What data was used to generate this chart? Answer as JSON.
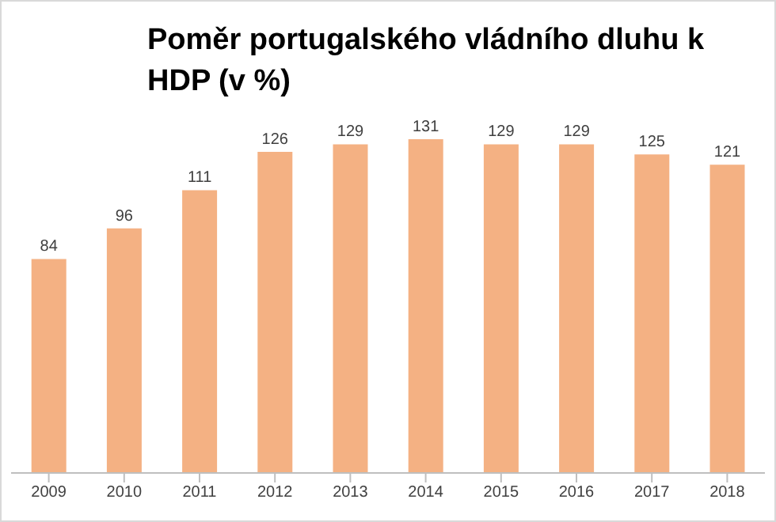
{
  "chart_data": {
    "type": "bar",
    "title": "Poměr portugalského vládního dluhu k HDP (v %)",
    "categories": [
      "2009",
      "2010",
      "2011",
      "2012",
      "2013",
      "2014",
      "2015",
      "2016",
      "2017",
      "2018"
    ],
    "values": [
      84,
      96,
      111,
      126,
      129,
      131,
      129,
      129,
      125,
      121
    ],
    "color": "#f4b183",
    "data_labels": true
  }
}
